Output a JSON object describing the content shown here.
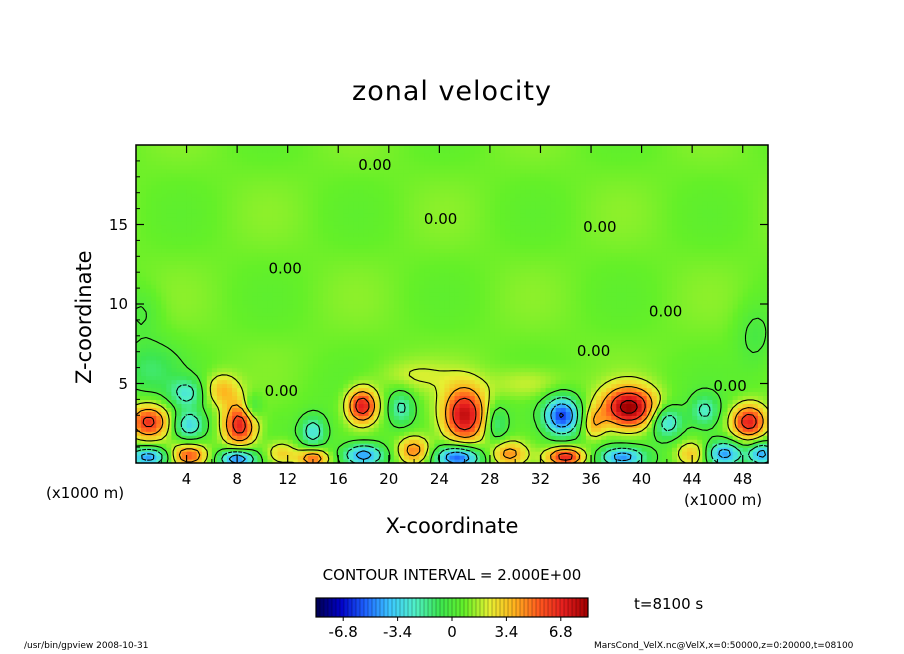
{
  "chart_data": {
    "type": "heatmap",
    "title": "zonal velocity",
    "xlabel": "X-coordinate",
    "ylabel": "Z-coordinate",
    "x_unit": "(x1000 m)",
    "xlim": [
      0,
      50
    ],
    "ylim": [
      0,
      20
    ],
    "x_ticks": [
      "4",
      "8",
      "12",
      "16",
      "20",
      "24",
      "28",
      "32",
      "36",
      "40",
      "44",
      "48"
    ],
    "x_tick_values": [
      4,
      8,
      12,
      16,
      20,
      24,
      28,
      32,
      36,
      40,
      44,
      48
    ],
    "y_ticks": [
      "5",
      "10",
      "15"
    ],
    "y_tick_values": [
      5,
      10,
      15
    ],
    "contour_interval_text": "CONTOUR INTERVAL = 2.000E+00",
    "contour_labels": [
      {
        "text": "0.00",
        "x": 18.9,
        "z": 18.7
      },
      {
        "text": "0.00",
        "x": 24.1,
        "z": 15.3
      },
      {
        "text": "0.00",
        "x": 36.7,
        "z": 14.8
      },
      {
        "text": "0.00",
        "x": 11.8,
        "z": 12.2
      },
      {
        "text": "0.00",
        "x": 41.9,
        "z": 9.5
      },
      {
        "text": "0.00",
        "x": 36.2,
        "z": 7.0
      },
      {
        "text": "0.00",
        "x": 11.5,
        "z": 4.5
      },
      {
        "text": "0.00",
        "x": 47.0,
        "z": 4.8
      }
    ],
    "colorbar": {
      "ticks": [
        "-6.8",
        "-3.4",
        "0",
        "3.4",
        "6.8"
      ],
      "tick_values": [
        -6.8,
        -3.4,
        0,
        3.4,
        6.8
      ],
      "range": [
        -8.5,
        8.5
      ],
      "colors": [
        "#000050",
        "#0000c8",
        "#1e64ff",
        "#3cc8ff",
        "#50f0c8",
        "#3ce650",
        "#64f028",
        "#e6f032",
        "#ffb41e",
        "#ff5a1e",
        "#e61e1e",
        "#a00000"
      ]
    },
    "cells": [
      {
        "x": 1,
        "z": 2.6,
        "v": 6.0,
        "rx": 1.6,
        "rz": 1.1
      },
      {
        "x": 1,
        "z": 0.4,
        "v": -5.5,
        "rx": 1.5,
        "rz": 0.6
      },
      {
        "x": 4.2,
        "z": 0.5,
        "v": 5.0,
        "rx": 1.4,
        "rz": 0.7
      },
      {
        "x": 4.2,
        "z": 2.4,
        "v": -4.0,
        "rx": 1.2,
        "rz": 0.9
      },
      {
        "x": 4.0,
        "z": 4.4,
        "v": -3.0,
        "rx": 1.3,
        "rz": 0.9
      },
      {
        "x": 6.8,
        "z": 4.6,
        "v": 3.0,
        "rx": 1.3,
        "rz": 1.0
      },
      {
        "x": 8.2,
        "z": 2.4,
        "v": 6.5,
        "rx": 1.3,
        "rz": 1.4
      },
      {
        "x": 8.0,
        "z": 0.3,
        "v": -6.0,
        "rx": 1.4,
        "rz": 0.6
      },
      {
        "x": 9.2,
        "z": 3.5,
        "v": -2.5,
        "rx": 0.7,
        "rz": 0.8
      },
      {
        "x": 11.5,
        "z": 0.6,
        "v": 3.0,
        "rx": 1.3,
        "rz": 0.8
      },
      {
        "x": 14.0,
        "z": 2.0,
        "v": -3.5,
        "rx": 1.0,
        "rz": 1.0
      },
      {
        "x": 14.0,
        "z": 0.3,
        "v": 5.0,
        "rx": 1.2,
        "rz": 0.6
      },
      {
        "x": 17.9,
        "z": 3.6,
        "v": 6.8,
        "rx": 1.2,
        "rz": 1.1
      },
      {
        "x": 18.0,
        "z": 0.5,
        "v": -5.5,
        "rx": 1.6,
        "rz": 0.7
      },
      {
        "x": 21.0,
        "z": 3.5,
        "v": -3.0,
        "rx": 1.0,
        "rz": 1.1
      },
      {
        "x": 22.0,
        "z": 0.8,
        "v": 4.5,
        "rx": 1.3,
        "rz": 0.9
      },
      {
        "x": 26.0,
        "z": 3.0,
        "v": 7.2,
        "rx": 1.7,
        "rz": 1.8
      },
      {
        "x": 25.5,
        "z": 0.4,
        "v": -6.5,
        "rx": 1.7,
        "rz": 0.7
      },
      {
        "x": 28.5,
        "z": 2.5,
        "v": -2.5,
        "rx": 0.9,
        "rz": 1.2
      },
      {
        "x": 29.5,
        "z": 0.6,
        "v": 4.0,
        "rx": 1.4,
        "rz": 0.8
      },
      {
        "x": 33.7,
        "z": 3.0,
        "v": -6.8,
        "rx": 1.4,
        "rz": 1.2
      },
      {
        "x": 34.0,
        "z": 0.4,
        "v": 6.5,
        "rx": 1.5,
        "rz": 0.6
      },
      {
        "x": 36.2,
        "z": 2.5,
        "v": 3.0,
        "rx": 0.9,
        "rz": 1.0
      },
      {
        "x": 39.0,
        "z": 3.5,
        "v": 8.0,
        "rx": 2.1,
        "rz": 1.3
      },
      {
        "x": 38.5,
        "z": 0.4,
        "v": -5.0,
        "rx": 1.7,
        "rz": 0.6
      },
      {
        "x": 42.0,
        "z": 2.6,
        "v": -4.0,
        "rx": 1.2,
        "rz": 1.0
      },
      {
        "x": 44.0,
        "z": 0.6,
        "v": 3.0,
        "rx": 1.3,
        "rz": 0.8
      },
      {
        "x": 45.0,
        "z": 3.3,
        "v": -3.0,
        "rx": 1.1,
        "rz": 1.0
      },
      {
        "x": 46.5,
        "z": 0.6,
        "v": -5.5,
        "rx": 1.5,
        "rz": 0.8
      },
      {
        "x": 48.5,
        "z": 2.6,
        "v": 6.5,
        "rx": 1.4,
        "rz": 1.1
      },
      {
        "x": 49.5,
        "z": 0.6,
        "v": -5.0,
        "rx": 1.0,
        "rz": 0.7
      },
      {
        "x": 1,
        "z": 6.0,
        "v": -1.8,
        "rx": 2.5,
        "rz": 1.8
      },
      {
        "x": 0.5,
        "z": 9.5,
        "v": -1.0,
        "rx": 1.5,
        "rz": 1.5
      },
      {
        "x": 49,
        "z": 8.0,
        "v": -1.2,
        "rx": 1.5,
        "rz": 2.0
      },
      {
        "x": 31,
        "z": 5.0,
        "v": 1.5,
        "rx": 3.0,
        "rz": 1.0
      },
      {
        "x": 22,
        "z": 5.5,
        "v": 1.2,
        "rx": 3.0,
        "rz": 1.0
      }
    ]
  },
  "page": {
    "x_unit_left": "(x1000 m)",
    "x_unit_right": "(x1000 m)",
    "time_label": "t=8100 s",
    "footer_left": "/usr/bin/gpview   2008-10-31",
    "footer_right": "MarsCond_VelX.nc@VelX,x=0:50000,z=0:20000,t=08100"
  }
}
